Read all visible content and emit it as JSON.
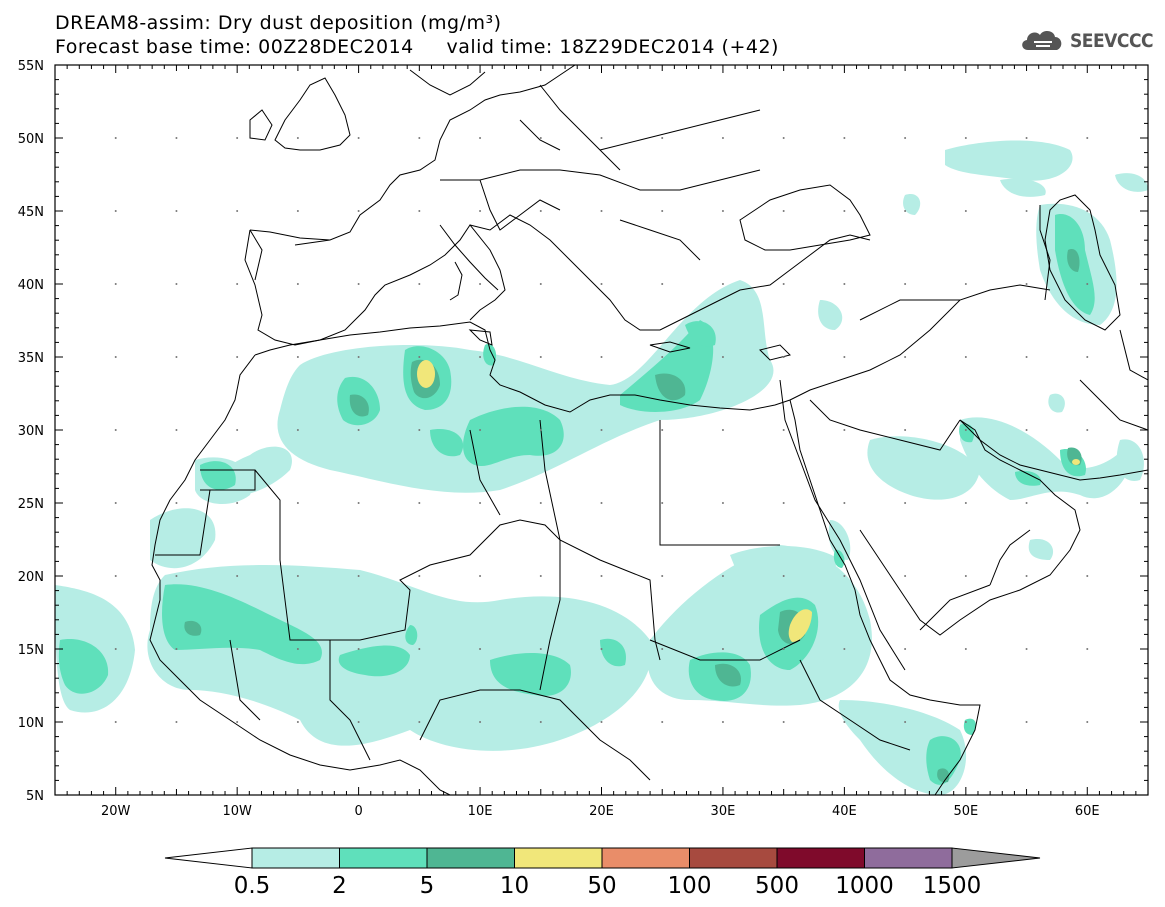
{
  "header": {
    "title": "DREAM8-assim: Dry dust deposition (mg/m³)",
    "subtitle": "Forecast base time: 00Z28DEC2014     valid time: 18Z29DEC2014 (+42)",
    "logo_text": "SEEVCCC"
  },
  "map": {
    "lat_labels": [
      "55N",
      "50N",
      "45N",
      "40N",
      "35N",
      "30N",
      "25N",
      "20N",
      "15N",
      "10N",
      "5N"
    ],
    "lon_labels": [
      "20W",
      "10W",
      "0",
      "10E",
      "20E",
      "30E",
      "40E",
      "50E",
      "60E"
    ]
  },
  "colorbar": {
    "labels": [
      "0.5",
      "2",
      "5",
      "10",
      "50",
      "100",
      "500",
      "1000",
      "1500"
    ],
    "colors": [
      "#ffffff",
      "#b6ede5",
      "#5fe0bb",
      "#4fb693",
      "#f1e77a",
      "#e98d69",
      "#a74a3f",
      "#7f0a2b",
      "#8f6c9c",
      "#9c9c9c"
    ]
  }
}
